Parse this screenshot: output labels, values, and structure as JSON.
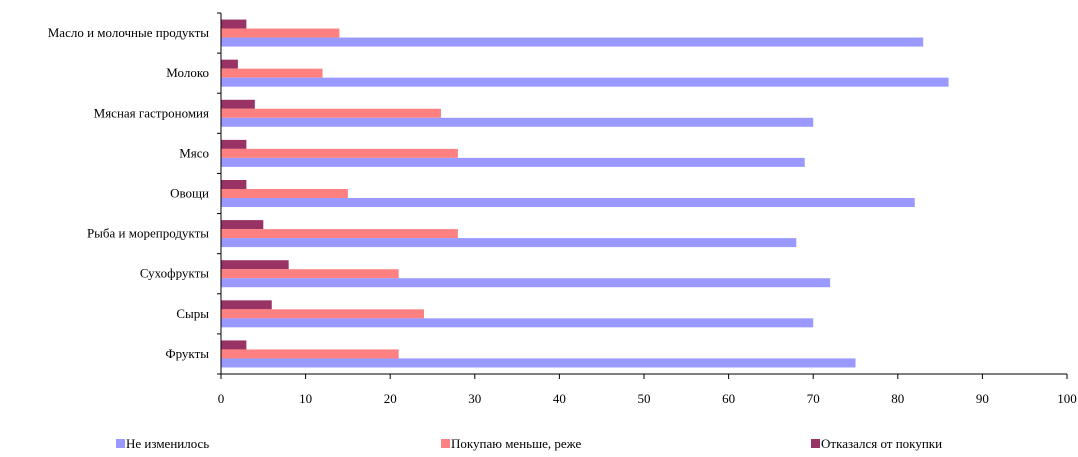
{
  "chart_data": {
    "type": "bar",
    "orientation": "horizontal",
    "title": "",
    "xlabel": "",
    "ylabel": "",
    "categories": [
      "Масло и молочные продукты",
      "Молоко",
      "Мясная гастрономия",
      "Мясо",
      "Овощи",
      "Рыба и морепродукты",
      "Сухофрукты",
      "Сыры",
      "Фрукты"
    ],
    "series": [
      {
        "name": "Не изменилось",
        "color": "#9999ff",
        "values": [
          83,
          86,
          70,
          69,
          82,
          68,
          72,
          70,
          75
        ]
      },
      {
        "name": "Покупаю меньше, реже",
        "color": "#ff8080",
        "values": [
          14,
          12,
          26,
          28,
          15,
          28,
          21,
          24,
          21
        ]
      },
      {
        "name": "Отказался от покупки",
        "color": "#993366",
        "values": [
          3,
          2,
          4,
          3,
          3,
          5,
          8,
          6,
          3
        ]
      }
    ],
    "xlim": [
      0,
      100
    ],
    "xticks": [
      "0",
      "10",
      "20",
      "30",
      "40",
      "50",
      "60",
      "70",
      "80",
      "90",
      "100"
    ],
    "grid": false,
    "legend_position": "bottom"
  }
}
